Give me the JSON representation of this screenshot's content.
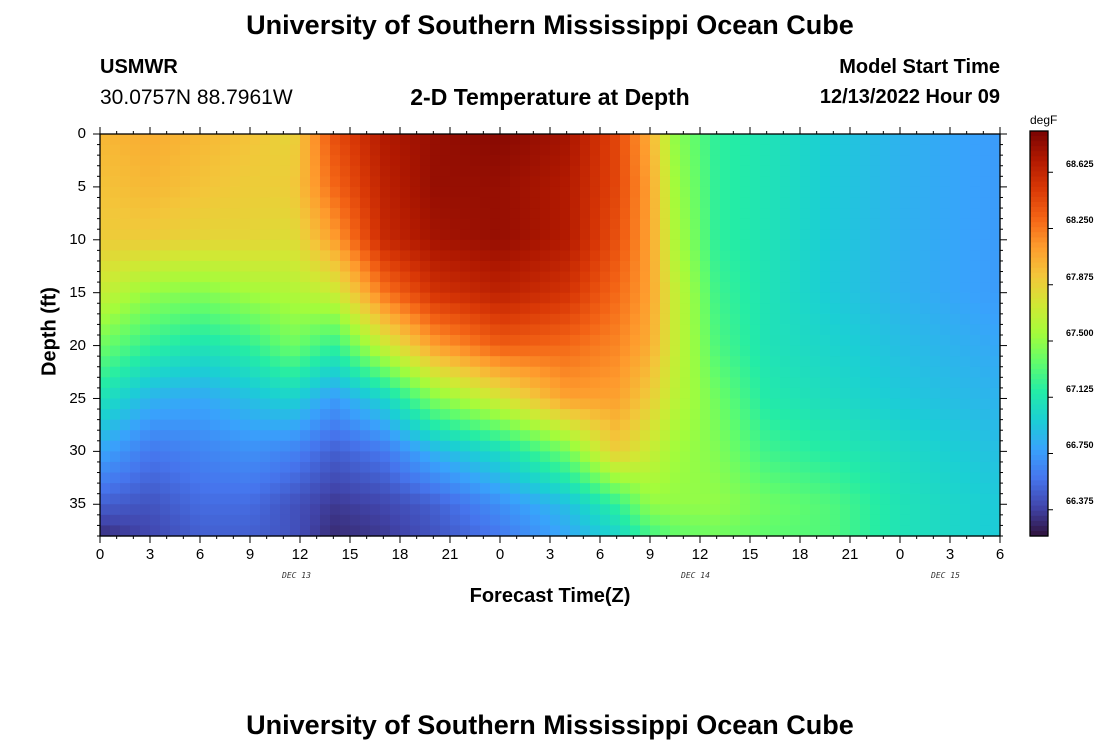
{
  "header": {
    "main_title": "University of Southern Mississippi Ocean Cube",
    "station": "USMWR",
    "coordinates": "30.0757N  88.7961W",
    "subtitle": "2-D Temperature at Depth",
    "model_start_label": "Model Start Time",
    "model_start_value": "12/13/2022 Hour 09",
    "bottom_title": "University of Southern Mississippi Ocean Cube"
  },
  "chart_data": {
    "type": "heatmap",
    "title": "2-D Temperature at Depth",
    "xlabel": "Forecast Time(Z)",
    "ylabel": "Depth (ft)",
    "x_ticks": [
      "0",
      "3",
      "6",
      "9",
      "12",
      "15",
      "18",
      "21",
      "0",
      "3",
      "6",
      "9",
      "12",
      "15",
      "18",
      "21",
      "0",
      "3",
      "6"
    ],
    "x_range_hours": [
      0,
      54
    ],
    "date_labels": [
      {
        "text": "DEC 13",
        "hour": 12
      },
      {
        "text": "DEC 14",
        "hour": 36
      },
      {
        "text": "DEC 15",
        "hour": 51
      }
    ],
    "y_ticks": [
      0,
      5,
      10,
      15,
      20,
      25,
      30,
      35
    ],
    "y_range_ft": [
      0,
      38
    ],
    "colorbar": {
      "unit": "degF",
      "min": 66.2,
      "max": 68.9,
      "labels": [
        "68.625",
        "68.250",
        "67.875",
        "67.500",
        "67.125",
        "66.750",
        "66.375"
      ],
      "colors": [
        "#30123b",
        "#4145ab",
        "#4675ed",
        "#39a2fc",
        "#1bcfd4",
        "#24eca6",
        "#61fc6c",
        "#a4fc3b",
        "#d1e834",
        "#f3c63a",
        "#fe9b2d",
        "#f36315",
        "#d93806",
        "#b11901",
        "#7a0403"
      ]
    },
    "profiles": [
      {
        "hour": 0,
        "temps": [
          68.0,
          67.95,
          67.9,
          67.7,
          67.4,
          67.1,
          66.8,
          66.5,
          66.3
        ]
      },
      {
        "hour": 3,
        "temps": [
          68.05,
          68.0,
          67.9,
          67.5,
          67.2,
          66.85,
          66.6,
          66.45,
          66.4
        ]
      },
      {
        "hour": 6,
        "temps": [
          68.0,
          67.95,
          67.85,
          67.45,
          67.1,
          66.8,
          66.65,
          66.55,
          66.5
        ]
      },
      {
        "hour": 9,
        "temps": [
          67.95,
          67.9,
          67.85,
          67.55,
          67.2,
          66.9,
          66.7,
          66.55,
          66.5
        ]
      },
      {
        "hour": 11.5,
        "temps": [
          67.85,
          67.9,
          67.8,
          67.6,
          67.4,
          67.0,
          66.65,
          66.45,
          66.45
        ]
      },
      {
        "hour": 14,
        "temps": [
          68.4,
          68.3,
          68.1,
          67.7,
          67.2,
          66.75,
          66.5,
          66.35,
          66.3
        ]
      },
      {
        "hour": 17,
        "temps": [
          68.7,
          68.65,
          68.6,
          68.25,
          67.7,
          67.0,
          66.6,
          66.4,
          66.35
        ]
      },
      {
        "hour": 20,
        "temps": [
          68.8,
          68.8,
          68.75,
          68.55,
          68.1,
          67.45,
          66.85,
          66.5,
          66.45
        ]
      },
      {
        "hour": 24,
        "temps": [
          68.85,
          68.8,
          68.8,
          68.65,
          68.35,
          67.75,
          67.05,
          66.7,
          66.6
        ]
      },
      {
        "hour": 28,
        "temps": [
          68.75,
          68.7,
          68.7,
          68.55,
          68.3,
          68.1,
          67.4,
          66.9,
          66.8
        ]
      },
      {
        "hour": 31,
        "temps": [
          68.45,
          68.45,
          68.4,
          68.3,
          68.2,
          68.1,
          67.9,
          67.2,
          67.0
        ]
      },
      {
        "hour": 33,
        "temps": [
          68.05,
          68.1,
          68.1,
          68.1,
          68.05,
          67.9,
          67.7,
          67.5,
          67.25
        ]
      },
      {
        "hour": 34.5,
        "temps": [
          67.5,
          67.55,
          67.6,
          67.7,
          67.7,
          67.65,
          67.55,
          67.5,
          67.35
        ]
      },
      {
        "hour": 37,
        "temps": [
          67.2,
          67.2,
          67.2,
          67.25,
          67.3,
          67.4,
          67.45,
          67.5,
          67.4
        ]
      },
      {
        "hour": 40,
        "temps": [
          67.1,
          67.1,
          67.1,
          67.1,
          67.1,
          67.15,
          67.25,
          67.4,
          67.35
        ]
      },
      {
        "hour": 44,
        "temps": [
          66.95,
          66.95,
          66.95,
          66.95,
          67.0,
          67.05,
          67.15,
          67.3,
          67.3
        ]
      },
      {
        "hour": 48,
        "temps": [
          66.85,
          66.85,
          66.85,
          66.85,
          66.9,
          66.95,
          67.05,
          67.1,
          67.1
        ]
      },
      {
        "hour": 54,
        "temps": [
          66.75,
          66.75,
          66.75,
          66.75,
          66.8,
          66.85,
          66.9,
          66.95,
          66.95
        ]
      }
    ],
    "profile_depths_ft": [
      0,
      5,
      10,
      15,
      20,
      25,
      30,
      35,
      38
    ]
  }
}
